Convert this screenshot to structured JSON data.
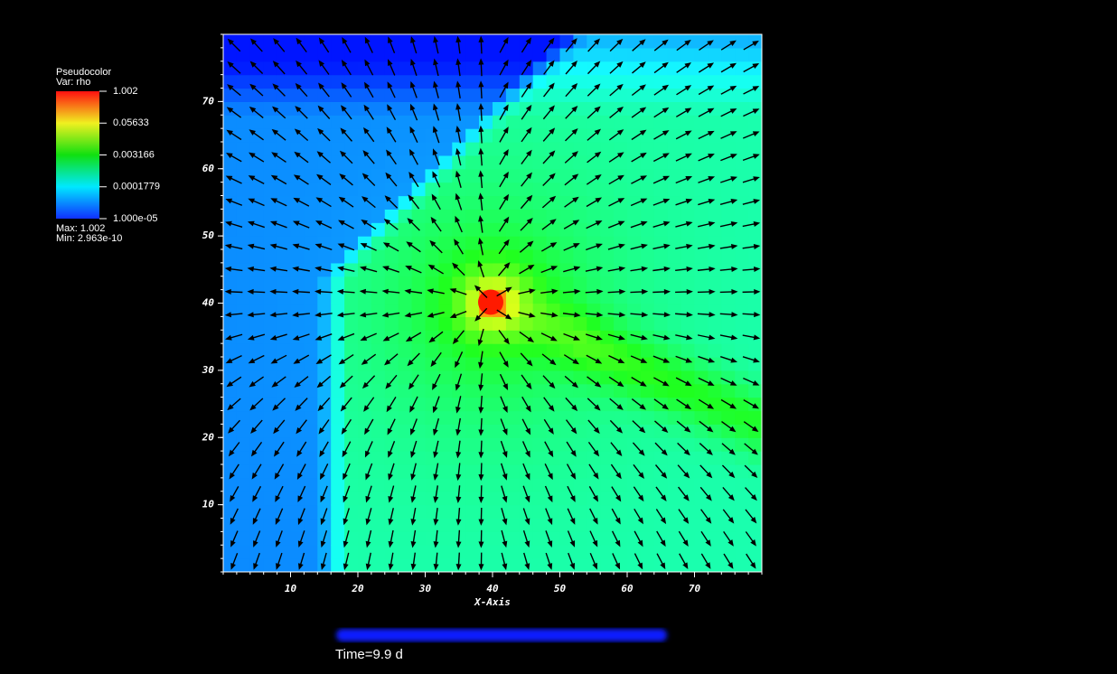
{
  "chart_data": {
    "type": "pseudocolor",
    "legend_title": "Pseudocolor",
    "variable": "Var: rho",
    "colorbar": {
      "scale": "log",
      "lim": [
        1e-05,
        1.002
      ],
      "ticks": [
        1.002,
        0.05633,
        0.003166,
        0.0001779,
        {
          "value": 1e-05,
          "label": "1.000e-05"
        }
      ]
    },
    "max_label": "Max: 1.002",
    "min_label": "Min: 2.963e-10",
    "xlabel": "X-Axis",
    "xlim": [
      0,
      80
    ],
    "ylim": [
      0,
      80
    ],
    "xticks": [
      10,
      20,
      30,
      40,
      50,
      60,
      70
    ],
    "yticks": [
      10,
      20,
      30,
      40,
      50,
      60,
      70
    ],
    "time_label": "Time=9.9 d"
  }
}
